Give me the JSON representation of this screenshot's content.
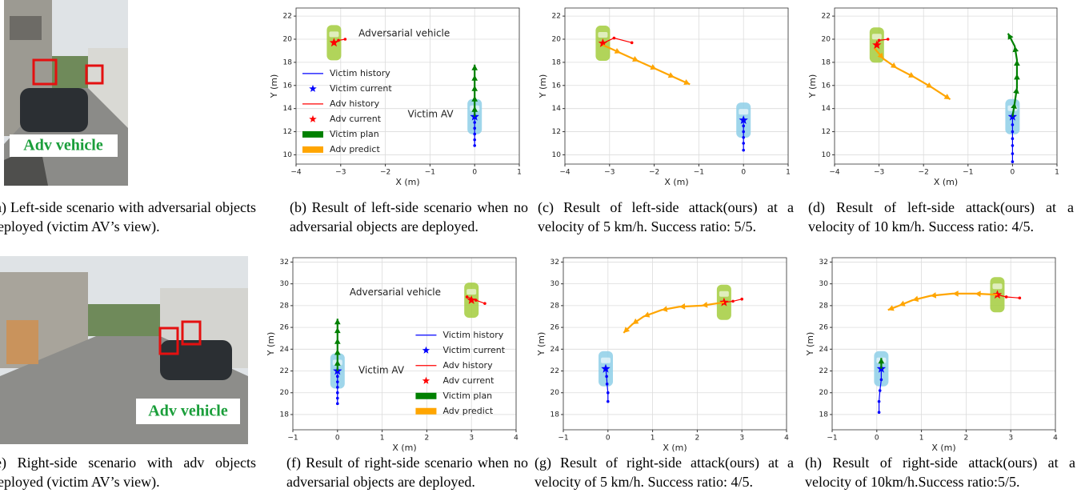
{
  "photos": [
    {
      "label": "Adv vehicle"
    },
    {
      "label": "Adv vehicle"
    }
  ],
  "captions": [
    "(a) Left-side scenario with adversarial objects deployed (victim AV’s view).",
    "(b) Result of left-side scenario when no adversarial objects are deployed.",
    "(c) Result of left-side attack(ours) at a velocity of 5 km/h. Success ratio: 5/5.",
    "(d) Result of left-side attack(ours) at a velocity of 10 km/h. Success ratio: 4/5.",
    "(e) Right-side scenario with adv objects deployed (victim AV’s view).",
    "(f) Result of right-side scenario when no adversarial objects are deployed.",
    "(g) Result of right-side attack(ours) at a velocity of 5 km/h. Success ratio: 4/5.",
    "(h) Result of right-side attack(ours) at a velocity of 10km/h.Success ratio:5/5."
  ],
  "chart_data": [
    {
      "type": "line",
      "xlabel": "X (m)",
      "ylabel": "Y (m)",
      "xlim": [
        -4,
        1
      ],
      "ylim": [
        9.2,
        22.7
      ],
      "xticks": [
        {
          "value": -4,
          "label": "−4"
        },
        {
          "value": -3,
          "label": "−3"
        },
        {
          "value": -2,
          "label": "−2"
        },
        {
          "value": -1,
          "label": "−1"
        },
        0,
        1
      ],
      "yticks": [
        10,
        12,
        14,
        16,
        18,
        20,
        22
      ],
      "grid": true,
      "legend": "left",
      "annotations": [
        {
          "text": "Adversarial vehicle",
          "x": -2.6,
          "y": 20.5
        },
        {
          "text": "Victim AV",
          "x": -1.5,
          "y": 13.5
        }
      ],
      "series": [
        {
          "name": "Victim history",
          "color": "#0000ff",
          "style": "line-dots",
          "x": [
            0,
            0,
            0,
            0,
            0,
            0
          ],
          "values": [
            10.8,
            11.3,
            11.8,
            12.3,
            12.8,
            13.3
          ]
        },
        {
          "name": "Victim current",
          "color": "#0000ff",
          "style": "star",
          "car": "#8ecfe8",
          "x": [
            0
          ],
          "values": [
            13.3
          ]
        },
        {
          "name": "Adv history",
          "color": "#ff0000",
          "style": "line-dots",
          "x": [
            -2.9,
            -3.05,
            -3.15
          ],
          "values": [
            20.0,
            19.9,
            19.7
          ]
        },
        {
          "name": "Adv current",
          "color": "#ff0000",
          "style": "star",
          "car": "#a3cd3d",
          "x": [
            -3.15
          ],
          "values": [
            19.7
          ]
        },
        {
          "name": "Victim plan",
          "color": "#008000",
          "style": "arrows",
          "x": [
            0,
            0,
            0,
            0,
            0,
            0
          ],
          "values": [
            13.3,
            14.2,
            15.1,
            16.0,
            16.9,
            17.8
          ]
        },
        {
          "name": "Adv predict",
          "color": "#ffa500",
          "style": "arrows",
          "x": [],
          "values": []
        }
      ]
    },
    {
      "type": "line",
      "xlabel": "X (m)",
      "ylabel": "Y (m)",
      "xlim": [
        -4,
        1
      ],
      "ylim": [
        9.2,
        22.7
      ],
      "xticks": [
        {
          "value": -4,
          "label": "−4"
        },
        {
          "value": -3,
          "label": "−3"
        },
        {
          "value": -2,
          "label": "−2"
        },
        {
          "value": -1,
          "label": "−1"
        },
        0,
        1
      ],
      "yticks": [
        10,
        12,
        14,
        16,
        18,
        20,
        22
      ],
      "grid": true,
      "series": [
        {
          "color": "#0000ff",
          "style": "line-dots",
          "x": [
            0,
            0,
            0,
            0,
            0,
            0
          ],
          "values": [
            10.4,
            11,
            11.5,
            12,
            12.5,
            13.0
          ]
        },
        {
          "color": "#0000ff",
          "style": "star",
          "car": "#8ecfe8",
          "x": [
            0
          ],
          "values": [
            13.0
          ]
        },
        {
          "color": "#ff0000",
          "style": "line-dots",
          "x": [
            -2.5,
            -2.9,
            -3.15
          ],
          "values": [
            19.7,
            20.1,
            19.65
          ]
        },
        {
          "color": "#ff0000",
          "style": "star",
          "car": "#a3cd3d",
          "x": [
            -3.15
          ],
          "values": [
            19.65
          ]
        },
        {
          "color": "#ffa500",
          "style": "arrows",
          "x": [
            -3.15,
            -2.75,
            -2.35,
            -1.95,
            -1.55,
            -1.2
          ],
          "values": [
            19.5,
            18.8,
            18.1,
            17.4,
            16.7,
            16.1
          ]
        }
      ]
    },
    {
      "type": "line",
      "xlabel": "X (m)",
      "ylabel": "Y (m)",
      "xlim": [
        -4,
        1
      ],
      "ylim": [
        9.2,
        22.7
      ],
      "xticks": [
        {
          "value": -4,
          "label": "−4"
        },
        {
          "value": -3,
          "label": "−3"
        },
        {
          "value": -2,
          "label": "−2"
        },
        {
          "value": -1,
          "label": "−1"
        },
        0,
        1
      ],
      "yticks": [
        10,
        12,
        14,
        16,
        18,
        20,
        22
      ],
      "grid": true,
      "series": [
        {
          "color": "#0000ff",
          "style": "line-dots",
          "x": [
            0,
            0,
            0,
            0,
            0,
            0,
            0
          ],
          "values": [
            9.4,
            10.1,
            10.8,
            11.4,
            12,
            12.6,
            13.3
          ]
        },
        {
          "color": "#0000ff",
          "style": "star",
          "car": "#8ecfe8",
          "x": [
            0
          ],
          "values": [
            13.3
          ]
        },
        {
          "color": "#ff0000",
          "style": "line-dots",
          "x": [
            -2.8,
            -3.0,
            -3.05
          ],
          "values": [
            20.0,
            19.9,
            19.5
          ]
        },
        {
          "color": "#ff0000",
          "style": "star",
          "car": "#a3cd3d",
          "x": [
            -3.05
          ],
          "values": [
            19.5
          ]
        },
        {
          "color": "#008000",
          "style": "arrows",
          "x": [
            0,
            0.05,
            0.1,
            0.1,
            0.1,
            0.05,
            -0.1
          ],
          "values": [
            13.3,
            14.5,
            15.8,
            17.0,
            18.2,
            19.4,
            20.5
          ]
        },
        {
          "color": "#ffa500",
          "style": "arrows",
          "x": [
            -3.1,
            -2.9,
            -2.6,
            -2.2,
            -1.8,
            -1.4
          ],
          "values": [
            19.2,
            18.3,
            17.5,
            16.7,
            15.8,
            14.8
          ]
        }
      ]
    },
    {
      "type": "line",
      "xlabel": "X (m)",
      "ylabel": "Y (m)",
      "xlim": [
        -1,
        4
      ],
      "ylim": [
        16.6,
        32.4
      ],
      "xticks": [
        {
          "value": -1,
          "label": "−1"
        },
        0,
        1,
        2,
        3,
        4
      ],
      "yticks": [
        18,
        20,
        22,
        24,
        26,
        28,
        30,
        32
      ],
      "grid": true,
      "legend": "right",
      "annotations": [
        {
          "text": "Adversarial vehicle",
          "x": 0.27,
          "y": 29.2
        },
        {
          "text": "Victim AV",
          "x": 0.47,
          "y": 22.05
        }
      ],
      "series": [
        {
          "name": "Victim history",
          "color": "#0000ff",
          "style": "line-dots",
          "x": [
            0,
            0,
            0,
            0,
            0,
            0,
            0
          ],
          "values": [
            19.0,
            19.5,
            20,
            20.5,
            21,
            21.5,
            22.0
          ]
        },
        {
          "name": "Victim current",
          "color": "#0000ff",
          "style": "star",
          "car": "#8ecfe8",
          "x": [
            0
          ],
          "values": [
            22.0
          ]
        },
        {
          "name": "Adv history",
          "color": "#ff0000",
          "style": "line-dots",
          "x": [
            3.3,
            3.1,
            2.9
          ],
          "values": [
            28.2,
            28.5,
            28.8
          ]
        },
        {
          "name": "Adv current",
          "color": "#ff0000",
          "style": "star",
          "car": "#a3cd3d",
          "x": [
            3.0
          ],
          "values": [
            28.5
          ]
        },
        {
          "name": "Victim plan",
          "color": "#008000",
          "style": "arrows",
          "x": [
            0,
            0,
            0,
            0,
            0,
            0
          ],
          "values": [
            22,
            23,
            24,
            25,
            26,
            26.8
          ]
        },
        {
          "name": "Adv predict",
          "color": "#ffa500",
          "style": "arrows",
          "x": [],
          "values": []
        }
      ]
    },
    {
      "type": "line",
      "xlabel": "X (m)",
      "ylabel": "Y (m)",
      "xlim": [
        -1,
        4
      ],
      "ylim": [
        16.6,
        32.4
      ],
      "xticks": [
        {
          "value": -1,
          "label": "−1"
        },
        0,
        1,
        2,
        3,
        4
      ],
      "yticks": [
        18,
        20,
        22,
        24,
        26,
        28,
        30,
        32
      ],
      "grid": true,
      "series": [
        {
          "color": "#0000ff",
          "style": "line-dots",
          "x": [
            0,
            0,
            -0.02,
            -0.03,
            -0.05
          ],
          "values": [
            19.2,
            20,
            20.8,
            21.5,
            22.2
          ]
        },
        {
          "color": "#0000ff",
          "style": "star",
          "car": "#8ecfe8",
          "x": [
            -0.05
          ],
          "values": [
            22.2
          ]
        },
        {
          "color": "#ff0000",
          "style": "line-dots",
          "x": [
            3.0,
            2.8,
            2.6
          ],
          "values": [
            28.6,
            28.4,
            28.3
          ]
        },
        {
          "color": "#ff0000",
          "style": "star",
          "car": "#a3cd3d",
          "x": [
            2.6
          ],
          "values": [
            28.3
          ]
        },
        {
          "color": "#ffa500",
          "style": "arrows",
          "x": [
            2.6,
            2.1,
            1.6,
            1.2,
            0.8,
            0.55,
            0.35
          ],
          "values": [
            28.3,
            28.0,
            27.9,
            27.6,
            27.0,
            26.3,
            25.5
          ]
        }
      ]
    },
    {
      "type": "line",
      "xlabel": "X (m)",
      "ylabel": "Y (m)",
      "xlim": [
        -1,
        4
      ],
      "ylim": [
        16.6,
        32.4
      ],
      "xticks": [
        {
          "value": -1,
          "label": "−1"
        },
        0,
        1,
        2,
        3,
        4
      ],
      "yticks": [
        18,
        20,
        22,
        24,
        26,
        28,
        30,
        32
      ],
      "grid": true,
      "series": [
        {
          "color": "#0000ff",
          "style": "line-dots",
          "x": [
            0.05,
            0.05,
            0.07,
            0.1,
            0.1
          ],
          "values": [
            18.2,
            19.2,
            20.2,
            21.2,
            22.2
          ]
        },
        {
          "color": "#0000ff",
          "style": "star",
          "car": "#8ecfe8",
          "x": [
            0.1
          ],
          "values": [
            22.2
          ]
        },
        {
          "color": "#008000",
          "style": "arrows",
          "x": [
            0.1,
            0.1
          ],
          "values": [
            22.2,
            23.2
          ]
        },
        {
          "color": "#ff0000",
          "style": "line-dots",
          "x": [
            3.2,
            2.9,
            2.7
          ],
          "values": [
            28.7,
            28.8,
            29.0
          ]
        },
        {
          "color": "#ff0000",
          "style": "star",
          "car": "#a3cd3d",
          "x": [
            2.7
          ],
          "values": [
            29.0
          ]
        },
        {
          "color": "#ffa500",
          "style": "arrows",
          "x": [
            2.7,
            2.2,
            1.7,
            1.2,
            0.8,
            0.5,
            0.25
          ],
          "values": [
            29.0,
            29.1,
            29.1,
            28.9,
            28.5,
            28.0,
            27.6
          ]
        }
      ]
    }
  ]
}
